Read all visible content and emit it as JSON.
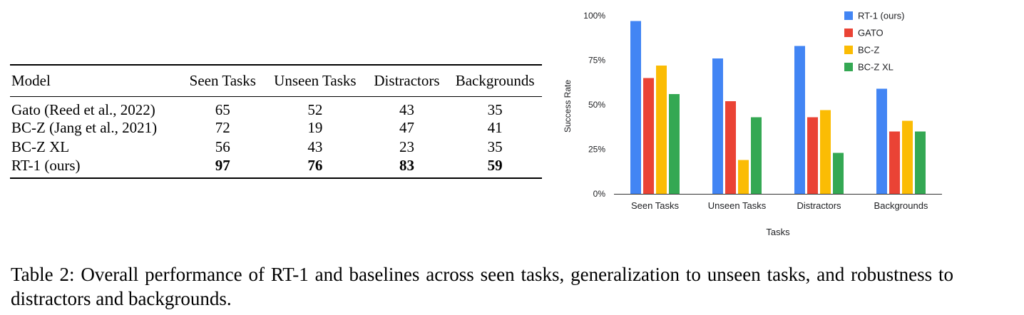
{
  "table": {
    "columns": [
      "Model",
      "Seen Tasks",
      "Unseen Tasks",
      "Distractors",
      "Backgrounds"
    ],
    "rows": [
      {
        "model": "Gato (Reed et al., 2022)",
        "values": [
          "65",
          "52",
          "43",
          "35"
        ],
        "bold": false
      },
      {
        "model": "BC-Z (Jang et al., 2021)",
        "values": [
          "72",
          "19",
          "47",
          "41"
        ],
        "bold": false
      },
      {
        "model": "BC-Z XL",
        "values": [
          "56",
          "43",
          "23",
          "35"
        ],
        "bold": false
      },
      {
        "model": "RT-1 (ours)",
        "values": [
          "97",
          "76",
          "83",
          "59"
        ],
        "bold": true
      }
    ]
  },
  "chart_data": {
    "type": "bar",
    "categories": [
      "Seen Tasks",
      "Unseen Tasks",
      "Distractors",
      "Backgrounds"
    ],
    "series": [
      {
        "name": "RT-1 (ours)",
        "color": "#4285f4",
        "values": [
          97,
          76,
          83,
          59
        ]
      },
      {
        "name": "GATO",
        "color": "#ea4335",
        "values": [
          65,
          52,
          43,
          35
        ]
      },
      {
        "name": "BC-Z",
        "color": "#fbbc04",
        "values": [
          72,
          19,
          47,
          41
        ]
      },
      {
        "name": "BC-Z XL",
        "color": "#34a853",
        "values": [
          56,
          43,
          23,
          35
        ]
      }
    ],
    "ylim": [
      0,
      100
    ],
    "yticks": [
      0,
      25,
      50,
      75,
      100
    ],
    "ytick_labels": [
      "0%",
      "25%",
      "50%",
      "75%",
      "100%"
    ],
    "xlabel": "Tasks",
    "ylabel": "Success Rate",
    "legend": "top-right",
    "grid": false
  },
  "caption": "Table 2: Overall performance of RT-1 and baselines across seen tasks, generalization to unseen tasks, and robustness to distractors and backgrounds."
}
